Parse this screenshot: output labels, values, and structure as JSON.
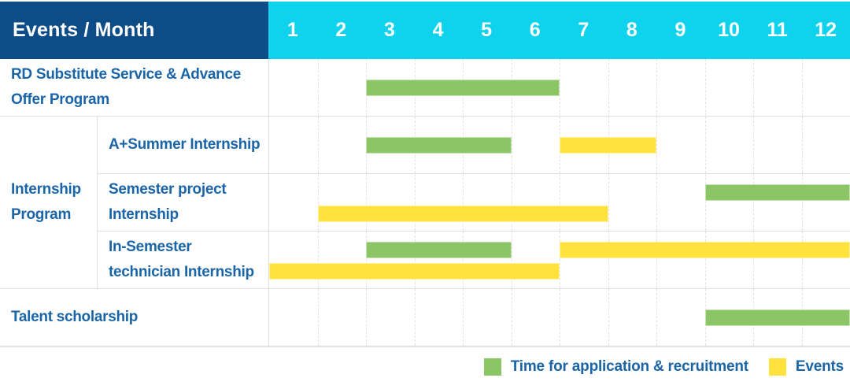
{
  "header": {
    "title": "Events / Month",
    "months": [
      "1",
      "2",
      "3",
      "4",
      "5",
      "6",
      "7",
      "8",
      "9",
      "10",
      "11",
      "12"
    ]
  },
  "colors": {
    "header_bg": "#0d4c86",
    "months_bg": "#0fd2ec",
    "label_text": "#1a65a8",
    "application": "#8bc565",
    "event": "#ffe23c",
    "grid_line": "#e3e3e3",
    "row_border": "#e0e0e0"
  },
  "chart_data": {
    "type": "gantt",
    "title": "Events / Month",
    "x_axis": {
      "label": "Month",
      "ticks": [
        1,
        2,
        3,
        4,
        5,
        6,
        7,
        8,
        9,
        10,
        11,
        12
      ]
    },
    "group_label": "Internship Program",
    "rows": [
      {
        "label": "RD Substitute Service & Advance Offer Program",
        "group": null,
        "bars": [
          {
            "kind": "application",
            "start": 3,
            "end": 6,
            "lane": "center"
          }
        ]
      },
      {
        "label": "A+Summer Internship",
        "group": "Internship Program",
        "bars": [
          {
            "kind": "application",
            "start": 3,
            "end": 5,
            "lane": "center"
          },
          {
            "kind": "event",
            "start": 7,
            "end": 8,
            "lane": "center"
          }
        ]
      },
      {
        "label": "Semester project Internship",
        "group": "Internship Program",
        "bars": [
          {
            "kind": "application",
            "start": 10,
            "end": 12,
            "lane": "top"
          },
          {
            "kind": "event",
            "start": 2,
            "end": 7,
            "lane": "bottom"
          }
        ]
      },
      {
        "label": "In-Semester technician Internship",
        "group": "Internship Program",
        "bars": [
          {
            "kind": "application",
            "start": 3,
            "end": 5,
            "lane": "top"
          },
          {
            "kind": "event",
            "start": 7,
            "end": 12,
            "lane": "top"
          },
          {
            "kind": "event",
            "start": 1,
            "end": 6,
            "lane": "bottom"
          }
        ]
      },
      {
        "label": "Talent scholarship",
        "group": null,
        "bars": [
          {
            "kind": "application",
            "start": 10,
            "end": 12,
            "lane": "center"
          }
        ]
      }
    ],
    "legend": [
      {
        "kind": "application",
        "label": "Time for application & recruitment",
        "color": "#8bc565"
      },
      {
        "kind": "event",
        "label": "Events",
        "color": "#ffe23c"
      }
    ]
  }
}
